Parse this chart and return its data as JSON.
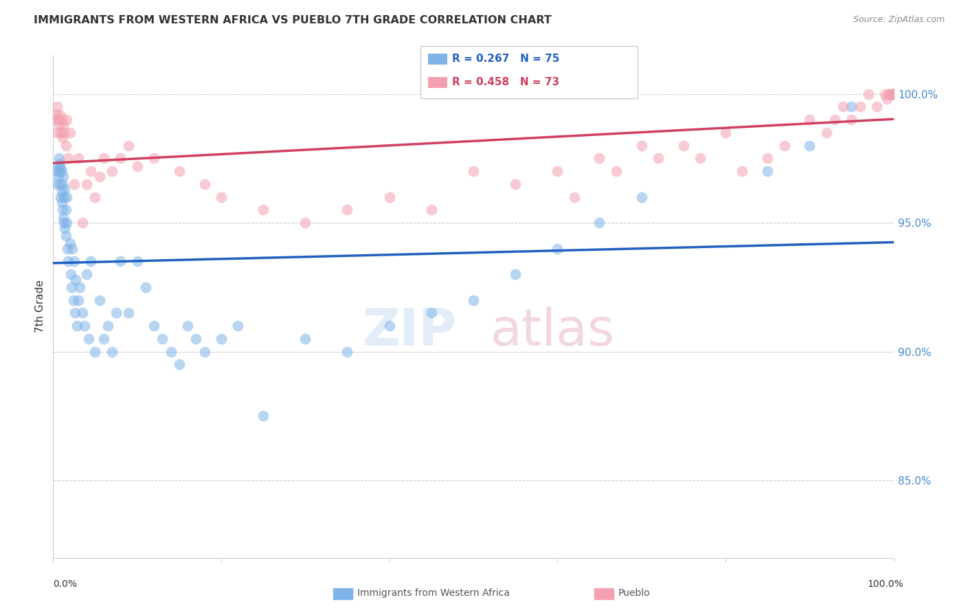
{
  "title": "IMMIGRANTS FROM WESTERN AFRICA VS PUEBLO 7TH GRADE CORRELATION CHART",
  "source": "Source: ZipAtlas.com",
  "ylabel": "7th Grade",
  "right_yticks": [
    85.0,
    90.0,
    95.0,
    100.0
  ],
  "right_ytick_labels": [
    "85.0%",
    "90.0%",
    "95.0%",
    "100.0%"
  ],
  "xmin": 0.0,
  "xmax": 100.0,
  "ymin": 82.0,
  "ymax": 101.5,
  "legend_blue_text": "R = 0.267   N = 75",
  "legend_pink_text": "R = 0.458   N = 73",
  "legend_label_blue": "Immigrants from Western Africa",
  "legend_label_pink": "Pueblo",
  "blue_color": "#7eb3e8",
  "pink_color": "#f4a0b0",
  "blue_line_color": "#2060c0",
  "pink_line_color": "#d04060",
  "blue_x": [
    0.5,
    0.5,
    0.6,
    0.6,
    0.7,
    0.7,
    0.8,
    0.8,
    0.9,
    0.9,
    1.0,
    1.0,
    1.0,
    1.1,
    1.1,
    1.2,
    1.2,
    1.3,
    1.3,
    1.4,
    1.4,
    1.5,
    1.5,
    1.6,
    1.6,
    1.7,
    1.8,
    2.0,
    2.1,
    2.2,
    2.3,
    2.4,
    2.5,
    2.6,
    2.7,
    2.8,
    3.0,
    3.2,
    3.5,
    3.7,
    4.0,
    4.2,
    4.5,
    5.0,
    5.5,
    6.0,
    6.5,
    7.0,
    7.5,
    8.0,
    9.0,
    10.0,
    11.0,
    12.0,
    13.0,
    14.0,
    15.0,
    16.0,
    17.0,
    18.0,
    20.0,
    22.0,
    25.0,
    30.0,
    35.0,
    40.0,
    45.0,
    50.0,
    55.0,
    60.0,
    65.0,
    70.0,
    85.0,
    90.0,
    95.0
  ],
  "blue_y": [
    96.5,
    97.0,
    97.2,
    96.8,
    97.5,
    97.0,
    97.3,
    96.5,
    97.1,
    96.0,
    97.0,
    96.2,
    95.8,
    96.5,
    95.5,
    96.8,
    95.2,
    96.0,
    95.0,
    96.3,
    94.8,
    95.5,
    94.5,
    96.0,
    95.0,
    94.0,
    93.5,
    94.2,
    93.0,
    92.5,
    94.0,
    92.0,
    93.5,
    91.5,
    92.8,
    91.0,
    92.0,
    92.5,
    91.5,
    91.0,
    93.0,
    90.5,
    93.5,
    90.0,
    92.0,
    90.5,
    91.0,
    90.0,
    91.5,
    93.5,
    91.5,
    93.5,
    92.5,
    91.0,
    90.5,
    90.0,
    89.5,
    91.0,
    90.5,
    90.0,
    90.5,
    91.0,
    87.5,
    90.5,
    90.0,
    91.0,
    91.5,
    92.0,
    93.0,
    94.0,
    95.0,
    96.0,
    97.0,
    98.0,
    99.5
  ],
  "pink_x": [
    0.3,
    0.4,
    0.5,
    0.5,
    0.6,
    0.7,
    0.8,
    0.9,
    1.0,
    1.1,
    1.2,
    1.3,
    1.5,
    1.6,
    1.8,
    2.0,
    2.5,
    3.0,
    3.5,
    4.0,
    4.5,
    5.0,
    5.5,
    6.0,
    7.0,
    8.0,
    9.0,
    10.0,
    12.0,
    15.0,
    18.0,
    20.0,
    25.0,
    30.0,
    35.0,
    40.0,
    45.0,
    50.0,
    55.0,
    60.0,
    62.0,
    65.0,
    67.0,
    70.0,
    72.0,
    75.0,
    77.0,
    80.0,
    82.0,
    85.0,
    87.0,
    90.0,
    92.0,
    93.0,
    94.0,
    95.0,
    96.0,
    97.0,
    98.0,
    99.0,
    99.2,
    99.4,
    99.6,
    99.7,
    99.8,
    99.9,
    100.0,
    100.0,
    100.0,
    100.0,
    100.0,
    100.0,
    100.0
  ],
  "pink_y": [
    99.0,
    99.2,
    98.5,
    99.5,
    99.0,
    98.8,
    99.2,
    98.5,
    99.0,
    98.3,
    98.8,
    98.5,
    98.0,
    99.0,
    97.5,
    98.5,
    96.5,
    97.5,
    95.0,
    96.5,
    97.0,
    96.0,
    96.8,
    97.5,
    97.0,
    97.5,
    98.0,
    97.2,
    97.5,
    97.0,
    96.5,
    96.0,
    95.5,
    95.0,
    95.5,
    96.0,
    95.5,
    97.0,
    96.5,
    97.0,
    96.0,
    97.5,
    97.0,
    98.0,
    97.5,
    98.0,
    97.5,
    98.5,
    97.0,
    97.5,
    98.0,
    99.0,
    98.5,
    99.0,
    99.5,
    99.0,
    99.5,
    100.0,
    99.5,
    100.0,
    99.8,
    100.0,
    100.0,
    100.0,
    100.0,
    100.0,
    100.0,
    100.0,
    100.0,
    100.0,
    100.0,
    100.0,
    100.0
  ]
}
